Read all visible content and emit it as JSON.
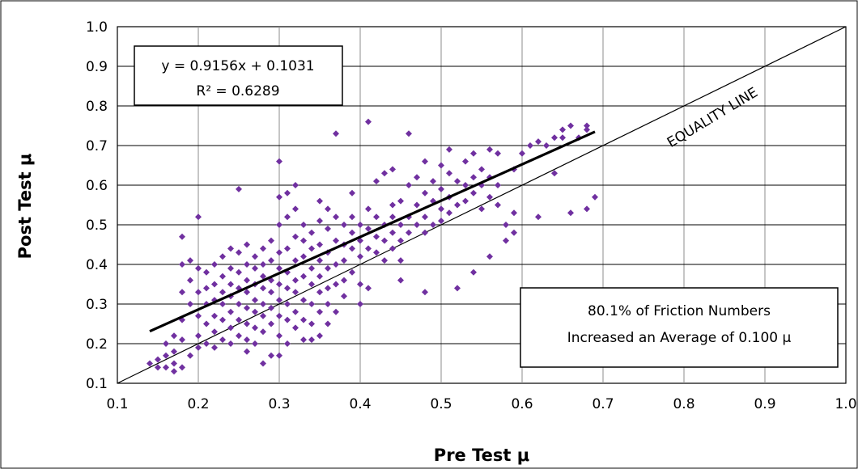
{
  "chart_data": {
    "type": "scatter",
    "xlabel": "Pre Test μ",
    "ylabel": "Post Test μ",
    "xlim": [
      0.1,
      1.0
    ],
    "ylim": [
      0.1,
      1.0
    ],
    "x_ticks": [
      "0.1",
      "0.2",
      "0.3",
      "0.4",
      "0.5",
      "0.6",
      "0.7",
      "0.8",
      "0.9",
      "1.0"
    ],
    "y_ticks": [
      "0.1",
      "0.2",
      "0.3",
      "0.4",
      "0.5",
      "0.6",
      "0.7",
      "0.8",
      "0.9",
      "1.0"
    ],
    "grid": true,
    "marker_color": "#7030A0",
    "trendline": {
      "slope": 0.9156,
      "intercept": 0.1031,
      "x_range": [
        0.14,
        0.69
      ],
      "equation": "y = 0.9156x + 0.1031",
      "r_squared": "R² = 0.6289"
    },
    "equality_line": {
      "label": "EQUALITY LINE",
      "x_range": [
        0.1,
        1.0
      ]
    },
    "annotation": {
      "line1": "80.1% of Friction Numbers",
      "line2": "Increased an Average of 0.100 μ"
    },
    "points": [
      [
        0.14,
        0.15
      ],
      [
        0.15,
        0.14
      ],
      [
        0.15,
        0.16
      ],
      [
        0.16,
        0.14
      ],
      [
        0.16,
        0.17
      ],
      [
        0.17,
        0.13
      ],
      [
        0.17,
        0.15
      ],
      [
        0.18,
        0.14
      ],
      [
        0.16,
        0.2
      ],
      [
        0.17,
        0.22
      ],
      [
        0.18,
        0.47
      ],
      [
        0.18,
        0.4
      ],
      [
        0.19,
        0.41
      ],
      [
        0.2,
        0.52
      ],
      [
        0.17,
        0.18
      ],
      [
        0.18,
        0.21
      ],
      [
        0.19,
        0.17
      ],
      [
        0.18,
        0.26
      ],
      [
        0.19,
        0.3
      ],
      [
        0.18,
        0.33
      ],
      [
        0.19,
        0.36
      ],
      [
        0.2,
        0.39
      ],
      [
        0.2,
        0.33
      ],
      [
        0.2,
        0.27
      ],
      [
        0.2,
        0.22
      ],
      [
        0.2,
        0.19
      ],
      [
        0.21,
        0.2
      ],
      [
        0.21,
        0.25
      ],
      [
        0.21,
        0.3
      ],
      [
        0.21,
        0.34
      ],
      [
        0.21,
        0.38
      ],
      [
        0.22,
        0.4
      ],
      [
        0.22,
        0.35
      ],
      [
        0.22,
        0.31
      ],
      [
        0.22,
        0.27
      ],
      [
        0.22,
        0.23
      ],
      [
        0.22,
        0.19
      ],
      [
        0.23,
        0.21
      ],
      [
        0.23,
        0.26
      ],
      [
        0.23,
        0.3
      ],
      [
        0.23,
        0.33
      ],
      [
        0.23,
        0.37
      ],
      [
        0.23,
        0.42
      ],
      [
        0.24,
        0.44
      ],
      [
        0.24,
        0.39
      ],
      [
        0.24,
        0.35
      ],
      [
        0.24,
        0.32
      ],
      [
        0.24,
        0.28
      ],
      [
        0.24,
        0.24
      ],
      [
        0.24,
        0.2
      ],
      [
        0.25,
        0.22
      ],
      [
        0.25,
        0.26
      ],
      [
        0.25,
        0.3
      ],
      [
        0.25,
        0.34
      ],
      [
        0.25,
        0.38
      ],
      [
        0.25,
        0.43
      ],
      [
        0.25,
        0.59
      ],
      [
        0.26,
        0.45
      ],
      [
        0.26,
        0.4
      ],
      [
        0.26,
        0.36
      ],
      [
        0.26,
        0.33
      ],
      [
        0.26,
        0.29
      ],
      [
        0.26,
        0.25
      ],
      [
        0.26,
        0.21
      ],
      [
        0.26,
        0.18
      ],
      [
        0.27,
        0.2
      ],
      [
        0.27,
        0.24
      ],
      [
        0.27,
        0.28
      ],
      [
        0.27,
        0.31
      ],
      [
        0.27,
        0.35
      ],
      [
        0.27,
        0.39
      ],
      [
        0.27,
        0.42
      ],
      [
        0.28,
        0.44
      ],
      [
        0.28,
        0.4
      ],
      [
        0.28,
        0.37
      ],
      [
        0.28,
        0.34
      ],
      [
        0.28,
        0.3
      ],
      [
        0.28,
        0.27
      ],
      [
        0.28,
        0.23
      ],
      [
        0.28,
        0.15
      ],
      [
        0.29,
        0.17
      ],
      [
        0.29,
        0.25
      ],
      [
        0.29,
        0.29
      ],
      [
        0.29,
        0.33
      ],
      [
        0.29,
        0.36
      ],
      [
        0.29,
        0.41
      ],
      [
        0.29,
        0.46
      ],
      [
        0.3,
        0.66
      ],
      [
        0.3,
        0.57
      ],
      [
        0.3,
        0.5
      ],
      [
        0.3,
        0.43
      ],
      [
        0.3,
        0.39
      ],
      [
        0.3,
        0.35
      ],
      [
        0.3,
        0.31
      ],
      [
        0.3,
        0.27
      ],
      [
        0.3,
        0.22
      ],
      [
        0.3,
        0.17
      ],
      [
        0.31,
        0.2
      ],
      [
        0.31,
        0.26
      ],
      [
        0.31,
        0.3
      ],
      [
        0.31,
        0.34
      ],
      [
        0.31,
        0.38
      ],
      [
        0.31,
        0.44
      ],
      [
        0.31,
        0.52
      ],
      [
        0.31,
        0.58
      ],
      [
        0.32,
        0.6
      ],
      [
        0.32,
        0.54
      ],
      [
        0.32,
        0.47
      ],
      [
        0.32,
        0.41
      ],
      [
        0.32,
        0.36
      ],
      [
        0.32,
        0.33
      ],
      [
        0.32,
        0.28
      ],
      [
        0.32,
        0.24
      ],
      [
        0.33,
        0.21
      ],
      [
        0.33,
        0.26
      ],
      [
        0.33,
        0.31
      ],
      [
        0.33,
        0.37
      ],
      [
        0.33,
        0.42
      ],
      [
        0.33,
        0.46
      ],
      [
        0.33,
        0.5
      ],
      [
        0.34,
        0.48
      ],
      [
        0.34,
        0.44
      ],
      [
        0.34,
        0.39
      ],
      [
        0.34,
        0.35
      ],
      [
        0.34,
        0.3
      ],
      [
        0.34,
        0.25
      ],
      [
        0.34,
        0.21
      ],
      [
        0.35,
        0.22
      ],
      [
        0.35,
        0.28
      ],
      [
        0.35,
        0.33
      ],
      [
        0.35,
        0.37
      ],
      [
        0.35,
        0.41
      ],
      [
        0.35,
        0.45
      ],
      [
        0.35,
        0.51
      ],
      [
        0.35,
        0.56
      ],
      [
        0.36,
        0.54
      ],
      [
        0.36,
        0.49
      ],
      [
        0.36,
        0.43
      ],
      [
        0.36,
        0.39
      ],
      [
        0.36,
        0.34
      ],
      [
        0.36,
        0.3
      ],
      [
        0.36,
        0.25
      ],
      [
        0.37,
        0.28
      ],
      [
        0.37,
        0.35
      ],
      [
        0.37,
        0.4
      ],
      [
        0.37,
        0.46
      ],
      [
        0.37,
        0.52
      ],
      [
        0.37,
        0.73
      ],
      [
        0.38,
        0.5
      ],
      [
        0.38,
        0.45
      ],
      [
        0.38,
        0.41
      ],
      [
        0.38,
        0.36
      ],
      [
        0.38,
        0.32
      ],
      [
        0.39,
        0.38
      ],
      [
        0.39,
        0.44
      ],
      [
        0.39,
        0.48
      ],
      [
        0.39,
        0.52
      ],
      [
        0.39,
        0.58
      ],
      [
        0.4,
        0.5
      ],
      [
        0.4,
        0.46
      ],
      [
        0.4,
        0.42
      ],
      [
        0.4,
        0.35
      ],
      [
        0.4,
        0.3
      ],
      [
        0.41,
        0.76
      ],
      [
        0.41,
        0.34
      ],
      [
        0.41,
        0.44
      ],
      [
        0.41,
        0.49
      ],
      [
        0.41,
        0.54
      ],
      [
        0.42,
        0.61
      ],
      [
        0.42,
        0.52
      ],
      [
        0.42,
        0.47
      ],
      [
        0.42,
        0.43
      ],
      [
        0.43,
        0.63
      ],
      [
        0.43,
        0.5
      ],
      [
        0.43,
        0.46
      ],
      [
        0.43,
        0.41
      ],
      [
        0.44,
        0.64
      ],
      [
        0.44,
        0.55
      ],
      [
        0.44,
        0.52
      ],
      [
        0.44,
        0.48
      ],
      [
        0.44,
        0.44
      ],
      [
        0.45,
        0.56
      ],
      [
        0.45,
        0.5
      ],
      [
        0.45,
        0.46
      ],
      [
        0.45,
        0.41
      ],
      [
        0.45,
        0.36
      ],
      [
        0.46,
        0.73
      ],
      [
        0.46,
        0.6
      ],
      [
        0.46,
        0.52
      ],
      [
        0.46,
        0.48
      ],
      [
        0.47,
        0.62
      ],
      [
        0.47,
        0.55
      ],
      [
        0.47,
        0.5
      ],
      [
        0.48,
        0.66
      ],
      [
        0.48,
        0.58
      ],
      [
        0.48,
        0.52
      ],
      [
        0.48,
        0.48
      ],
      [
        0.48,
        0.33
      ],
      [
        0.49,
        0.61
      ],
      [
        0.49,
        0.56
      ],
      [
        0.49,
        0.5
      ],
      [
        0.5,
        0.65
      ],
      [
        0.5,
        0.59
      ],
      [
        0.5,
        0.54
      ],
      [
        0.5,
        0.51
      ],
      [
        0.51,
        0.69
      ],
      [
        0.51,
        0.63
      ],
      [
        0.51,
        0.57
      ],
      [
        0.51,
        0.53
      ],
      [
        0.52,
        0.61
      ],
      [
        0.52,
        0.55
      ],
      [
        0.52,
        0.34
      ],
      [
        0.53,
        0.66
      ],
      [
        0.53,
        0.6
      ],
      [
        0.53,
        0.56
      ],
      [
        0.54,
        0.68
      ],
      [
        0.54,
        0.62
      ],
      [
        0.54,
        0.58
      ],
      [
        0.54,
        0.38
      ],
      [
        0.55,
        0.64
      ],
      [
        0.55,
        0.6
      ],
      [
        0.55,
        0.54
      ],
      [
        0.56,
        0.69
      ],
      [
        0.56,
        0.62
      ],
      [
        0.56,
        0.57
      ],
      [
        0.56,
        0.42
      ],
      [
        0.57,
        0.68
      ],
      [
        0.57,
        0.6
      ],
      [
        0.57,
        0.55
      ],
      [
        0.58,
        0.5
      ],
      [
        0.58,
        0.46
      ],
      [
        0.59,
        0.53
      ],
      [
        0.59,
        0.48
      ],
      [
        0.59,
        0.64
      ],
      [
        0.6,
        0.68
      ],
      [
        0.61,
        0.7
      ],
      [
        0.62,
        0.71
      ],
      [
        0.62,
        0.52
      ],
      [
        0.63,
        0.7
      ],
      [
        0.64,
        0.72
      ],
      [
        0.64,
        0.63
      ],
      [
        0.65,
        0.74
      ],
      [
        0.65,
        0.72
      ],
      [
        0.66,
        0.75
      ],
      [
        0.66,
        0.53
      ],
      [
        0.67,
        0.72
      ],
      [
        0.68,
        0.75
      ],
      [
        0.68,
        0.74
      ],
      [
        0.68,
        0.54
      ],
      [
        0.69,
        0.57
      ]
    ]
  }
}
